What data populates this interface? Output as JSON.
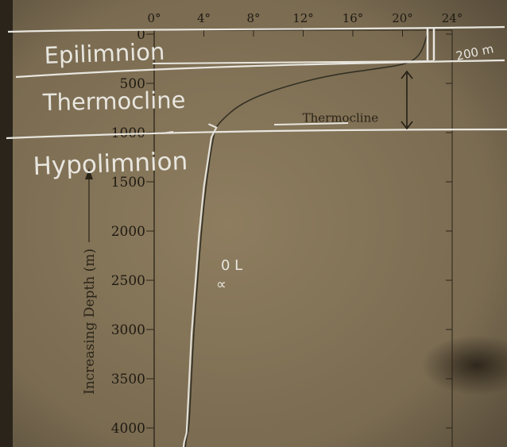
{
  "chart_data": {
    "type": "line",
    "title": "",
    "ylabel": "Increasing Depth (m)",
    "xlabel": "",
    "x_tick_labels": [
      "0°",
      "4°",
      "8°",
      "12°",
      "16°",
      "20°",
      "24°"
    ],
    "x_ticks": [
      0,
      4,
      8,
      12,
      16,
      20,
      24
    ],
    "xlim": [
      0,
      24
    ],
    "y_tick_labels": [
      "0",
      "500",
      "1000",
      "1500",
      "2000",
      "2500",
      "3000",
      "3500",
      "4000"
    ],
    "y_ticks": [
      0,
      500,
      1000,
      1500,
      2000,
      2500,
      3000,
      3500,
      4000
    ],
    "ylim": [
      0,
      4200
    ],
    "y_inverted": true,
    "series": [
      {
        "x": [
          22,
          21.5,
          20.5,
          18,
          14,
          10,
          7,
          5.2,
          4.8,
          4.2,
          3.8,
          3.5,
          3.2,
          3.0,
          2.8,
          2.6,
          2.5
        ],
        "y": [
          0,
          200,
          300,
          350,
          420,
          550,
          700,
          900,
          1000,
          1500,
          2000,
          2500,
          3000,
          3500,
          4000,
          4100,
          4200
        ]
      }
    ],
    "annotations": [
      {
        "text": "Thermocline",
        "x": 15,
        "y": 850
      }
    ],
    "grid": false,
    "legend": "none",
    "colors": {
      "curve": "#333024",
      "handwriting": "#e8e6df",
      "paper": "#817156"
    }
  },
  "handwriting": {
    "labels": [
      "Epilimnion",
      "Thermocline",
      "Hypolimnion"
    ],
    "depth_note": "200 m",
    "scribble": "0 L\n∝"
  }
}
